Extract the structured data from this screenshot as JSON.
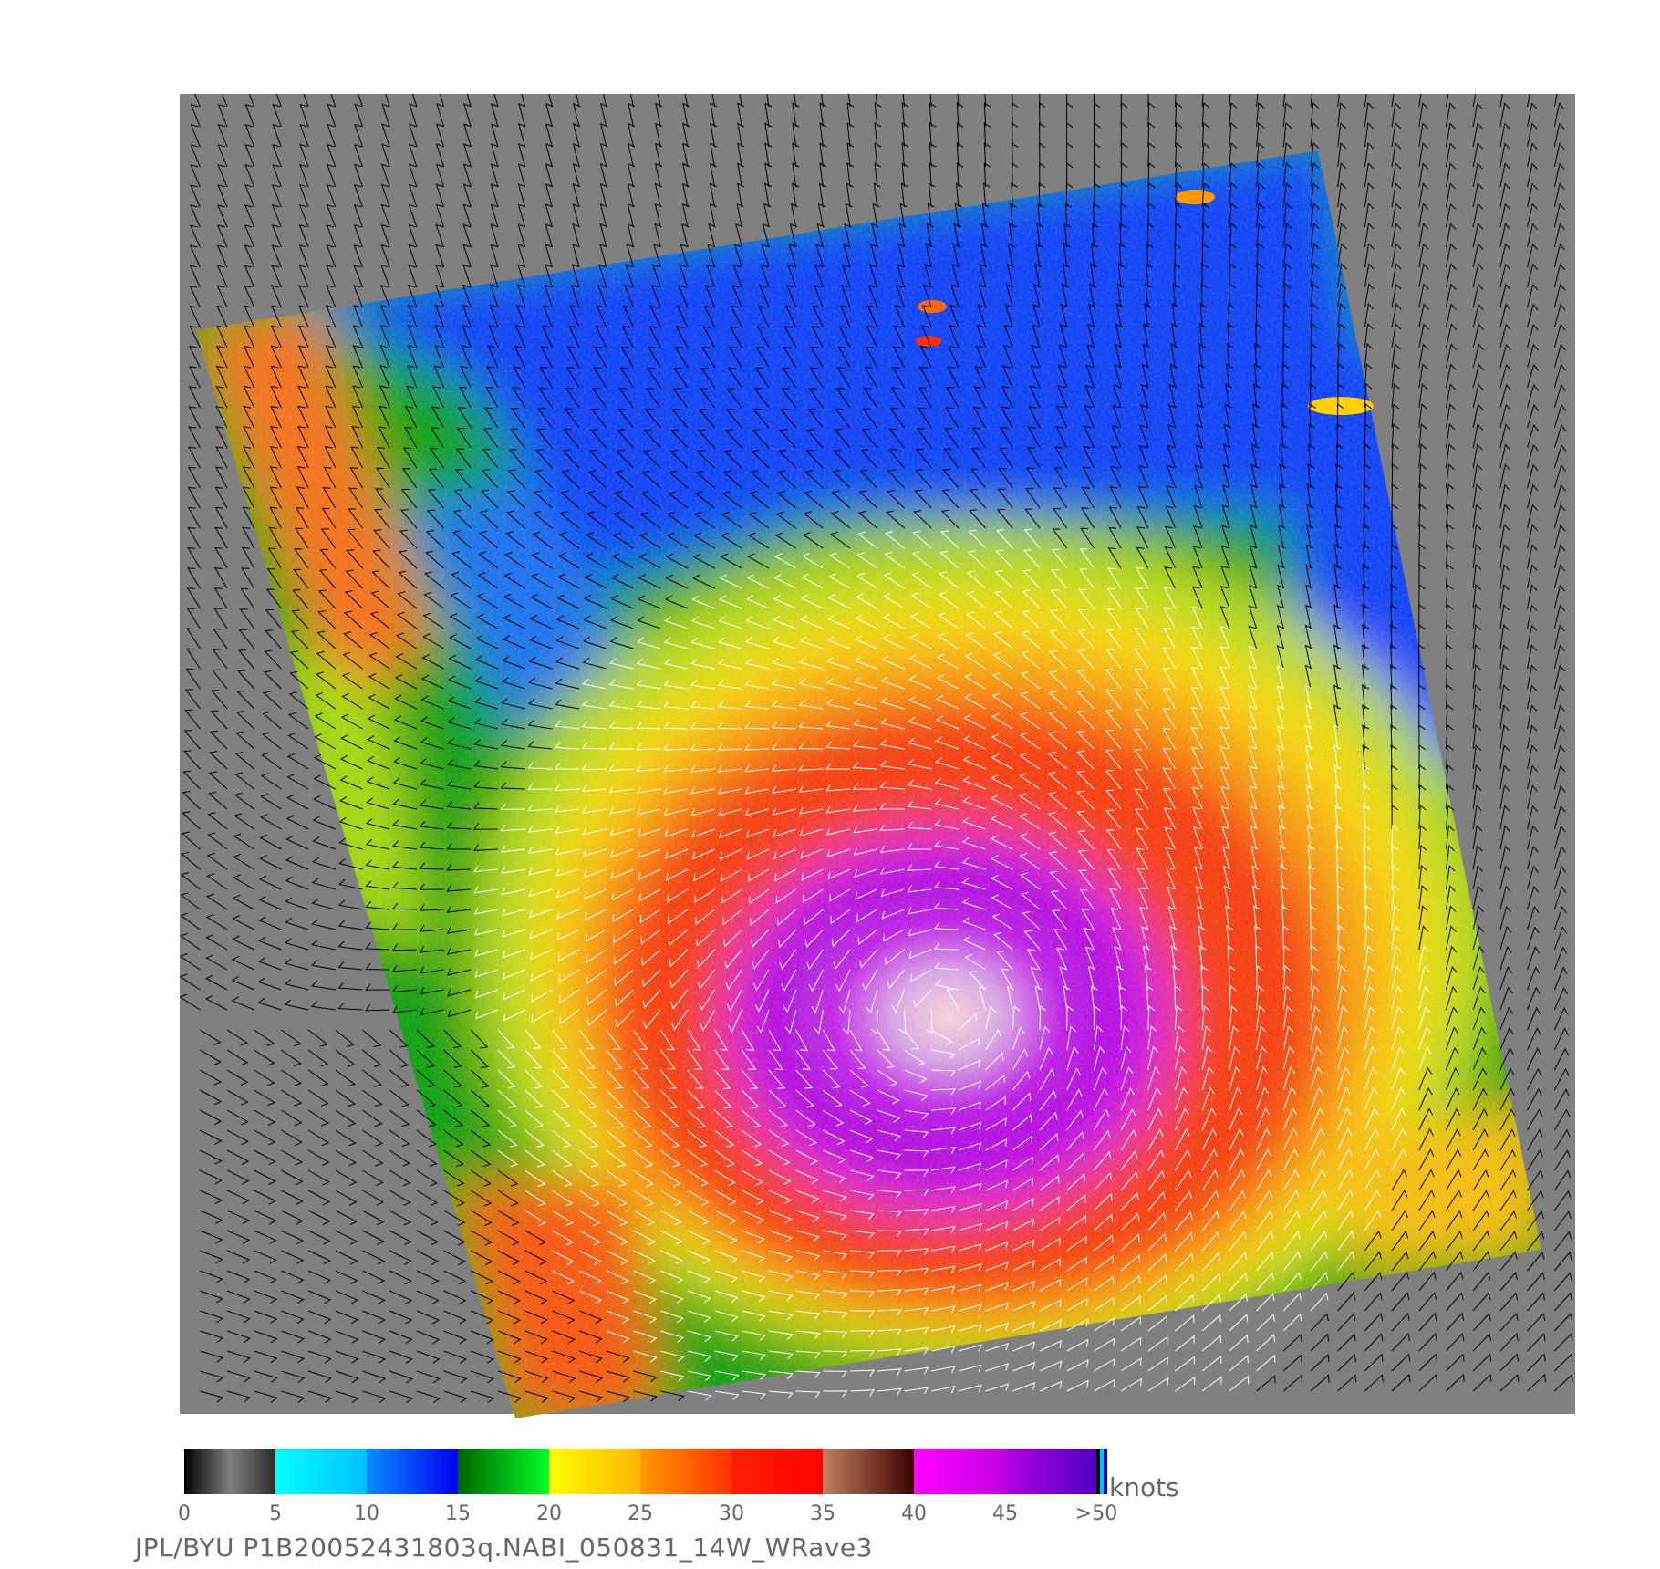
{
  "colorbar": {
    "ticks": [
      "0",
      "5",
      "10",
      "15",
      "20",
      "25",
      "30",
      "35",
      "40",
      "45",
      ">50"
    ],
    "units": "knots",
    "segments": [
      {
        "from": 0,
        "to": 5,
        "stops": [
          "#000000",
          "#7f7f7f",
          "#2a2a2a"
        ]
      },
      {
        "from": 5,
        "to": 10,
        "stops": [
          "#00ffff",
          "#00bfff"
        ]
      },
      {
        "from": 10,
        "to": 15,
        "stops": [
          "#0a8cff",
          "#0000f0"
        ]
      },
      {
        "from": 15,
        "to": 20,
        "stops": [
          "#006400",
          "#00ff28"
        ]
      },
      {
        "from": 20,
        "to": 25,
        "stops": [
          "#ffff00",
          "#ffb300"
        ]
      },
      {
        "from": 25,
        "to": 30,
        "stops": [
          "#ff9a00",
          "#ff3200"
        ]
      },
      {
        "from": 30,
        "to": 35,
        "stops": [
          "#ff2000",
          "#ff0000"
        ]
      },
      {
        "from": 35,
        "to": 40,
        "stops": [
          "#c08060",
          "#3a0000"
        ]
      },
      {
        "from": 40,
        "to": 45,
        "stops": [
          "#ff00ff",
          "#c000e0"
        ]
      },
      {
        "from": 45,
        "to": 50,
        "stops": [
          "#b000e0",
          "#5000c0"
        ]
      }
    ]
  },
  "caption": "JPL/BYU  P1B20052431803q.NABI_050831_14W_WRave3",
  "map": {
    "background_color": "#808080",
    "storm_palette": [
      "#0030ff",
      "#0a8cff",
      "#00b000",
      "#00ff28",
      "#ffff00",
      "#ffb300",
      "#ff6a00",
      "#ff1a00",
      "#8a4a3a",
      "#e000ff",
      "#a000e0",
      "#ffd0d0"
    ],
    "arrow_colors": [
      "#000000",
      "#ffffff"
    ]
  }
}
